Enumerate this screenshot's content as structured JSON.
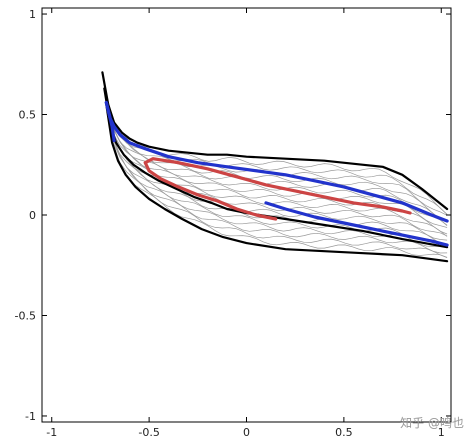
{
  "chart_data": {
    "type": "line",
    "title": "",
    "xlabel": "",
    "ylabel": "",
    "xlim": [
      -1.05,
      1.05
    ],
    "ylim": [
      -1.03,
      1.03
    ],
    "x_ticks": [
      -1,
      -0.5,
      0,
      0.5,
      1
    ],
    "y_ticks": [
      -1,
      -0.5,
      0,
      0.5,
      1
    ],
    "x_tick_labels": [
      "-1",
      "-0.5",
      "0",
      "0.5",
      "1"
    ],
    "y_tick_labels": [
      "-1",
      "-0.5",
      "0",
      "0.5",
      "1"
    ],
    "grid": false,
    "legend": "none",
    "colors": {
      "boundary": "#000000",
      "hatch": "#9a9a9a",
      "series_blue": "#2233cc",
      "series_red": "#cc4444"
    },
    "series": [
      {
        "color": "#000000",
        "x": [
          -0.74,
          -0.71,
          -0.68,
          -0.64,
          -0.6,
          -0.56,
          -0.5,
          -0.4,
          -0.3,
          -0.2,
          -0.1,
          0.0,
          0.2,
          0.4,
          0.6,
          0.7,
          0.8,
          0.9,
          1.03
        ],
        "y": [
          0.71,
          0.55,
          0.46,
          0.41,
          0.38,
          0.36,
          0.34,
          0.32,
          0.31,
          0.3,
          0.3,
          0.29,
          0.28,
          0.27,
          0.25,
          0.24,
          0.2,
          0.13,
          0.03
        ]
      },
      {
        "color": "#000000",
        "x": [
          -0.73,
          -0.7,
          -0.67,
          -0.63,
          -0.58,
          -0.52,
          -0.45,
          -0.36,
          -0.27,
          -0.18,
          -0.1,
          0.0,
          0.2,
          0.4,
          0.6,
          0.8,
          1.03
        ],
        "y": [
          0.63,
          0.45,
          0.36,
          0.3,
          0.25,
          0.21,
          0.17,
          0.13,
          0.09,
          0.06,
          0.03,
          0.01,
          -0.02,
          -0.05,
          -0.08,
          -0.12,
          -0.16
        ]
      },
      {
        "color": "#000000",
        "x": [
          -0.72,
          -0.69,
          -0.66,
          -0.62,
          -0.57,
          -0.5,
          -0.42,
          -0.33,
          -0.23,
          -0.12,
          0.0,
          0.2,
          0.4,
          0.6,
          0.8,
          1.03
        ],
        "y": [
          0.55,
          0.36,
          0.27,
          0.2,
          0.14,
          0.08,
          0.03,
          -0.02,
          -0.07,
          -0.11,
          -0.14,
          -0.17,
          -0.18,
          -0.19,
          -0.2,
          -0.23
        ]
      },
      {
        "color": "#2233cc",
        "x": [
          -0.72,
          -0.7,
          -0.68,
          -0.65,
          -0.6,
          -0.52,
          -0.4,
          -0.25,
          -0.1,
          0.05,
          0.2,
          0.35,
          0.5,
          0.65,
          0.8,
          0.95,
          1.03
        ],
        "y": [
          0.56,
          0.48,
          0.44,
          0.4,
          0.36,
          0.33,
          0.29,
          0.26,
          0.24,
          0.22,
          0.2,
          0.17,
          0.14,
          0.1,
          0.06,
          0.0,
          -0.03
        ]
      },
      {
        "color": "#2233cc",
        "x": [
          -0.72,
          -0.71,
          -0.7,
          -0.69,
          -0.68
        ],
        "y": [
          0.56,
          0.52,
          0.48,
          0.44,
          0.37
        ]
      },
      {
        "color": "#cc4444",
        "x": [
          0.84,
          0.8,
          0.7,
          0.55,
          0.4,
          0.25,
          0.1,
          -0.05,
          -0.2,
          -0.35,
          -0.48,
          -0.52,
          -0.5,
          -0.44,
          -0.35,
          -0.25,
          -0.15,
          -0.05,
          0.05,
          0.15
        ],
        "y": [
          0.01,
          0.02,
          0.04,
          0.06,
          0.09,
          0.12,
          0.15,
          0.19,
          0.23,
          0.26,
          0.28,
          0.26,
          0.22,
          0.18,
          0.14,
          0.1,
          0.07,
          0.03,
          0.0,
          -0.02
        ]
      },
      {
        "color": "#2233cc",
        "x": [
          0.1,
          0.2,
          0.35,
          0.5,
          0.65,
          0.8,
          0.95,
          1.03
        ],
        "y": [
          0.06,
          0.03,
          -0.01,
          -0.04,
          -0.07,
          -0.1,
          -0.13,
          -0.15
        ]
      }
    ]
  },
  "watermark": "知乎 @鸣也"
}
